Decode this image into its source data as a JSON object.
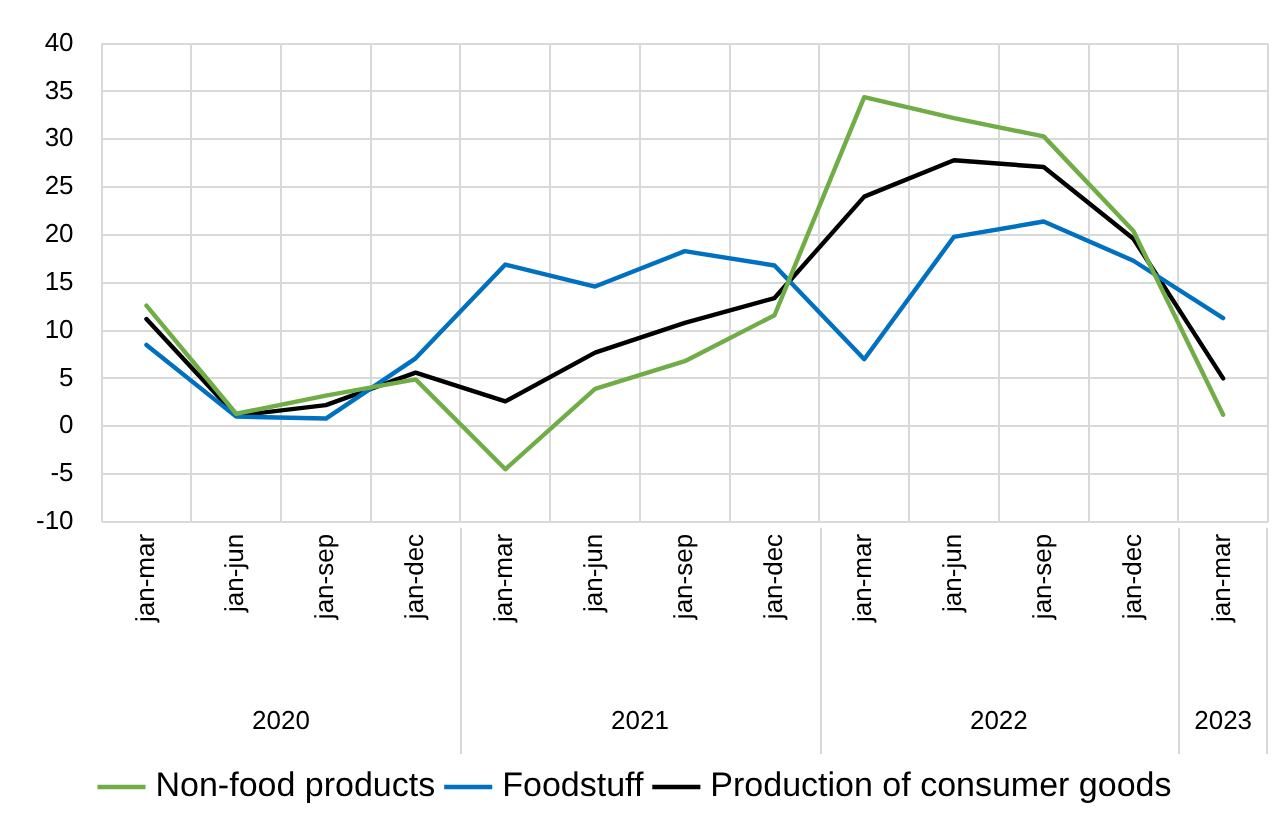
{
  "chart_data": {
    "type": "line",
    "categories": [
      "jan-mar",
      "jan-jun",
      "jan-sep",
      "jan-dec",
      "jan-mar",
      "jan-jun",
      "jan-sep",
      "jan-dec",
      "jan-mar",
      "jan-jun",
      "jan-sep",
      "jan-dec",
      "jan-mar"
    ],
    "series": [
      {
        "name": "Non-food products",
        "color": "#70ad47",
        "values": [
          12.6,
          1.3,
          3.2,
          4.9,
          -4.5,
          3.9,
          6.8,
          11.6,
          34.4,
          32.2,
          30.3,
          20.4,
          1.2
        ]
      },
      {
        "name": "Foodstuff",
        "color": "#0070c0",
        "values": [
          8.5,
          1.0,
          0.8,
          7.1,
          16.9,
          14.6,
          18.3,
          16.8,
          7.0,
          19.8,
          21.4,
          17.3,
          11.3
        ]
      },
      {
        "name": "Production of consumer goods",
        "color": "#000000",
        "values": [
          11.2,
          1.1,
          2.2,
          5.6,
          2.6,
          7.7,
          10.8,
          13.4,
          24.0,
          27.8,
          27.1,
          19.6,
          5.0
        ]
      }
    ],
    "ylim": [
      -10,
      40
    ],
    "yticks": [
      -10,
      -5,
      0,
      5,
      10,
      15,
      20,
      25,
      30,
      35,
      40
    ],
    "grid": true,
    "legend": "bottom",
    "marker": "none",
    "line_style": "solid",
    "annotations": [
      "2020",
      "2021",
      "2022",
      "2023"
    ]
  }
}
